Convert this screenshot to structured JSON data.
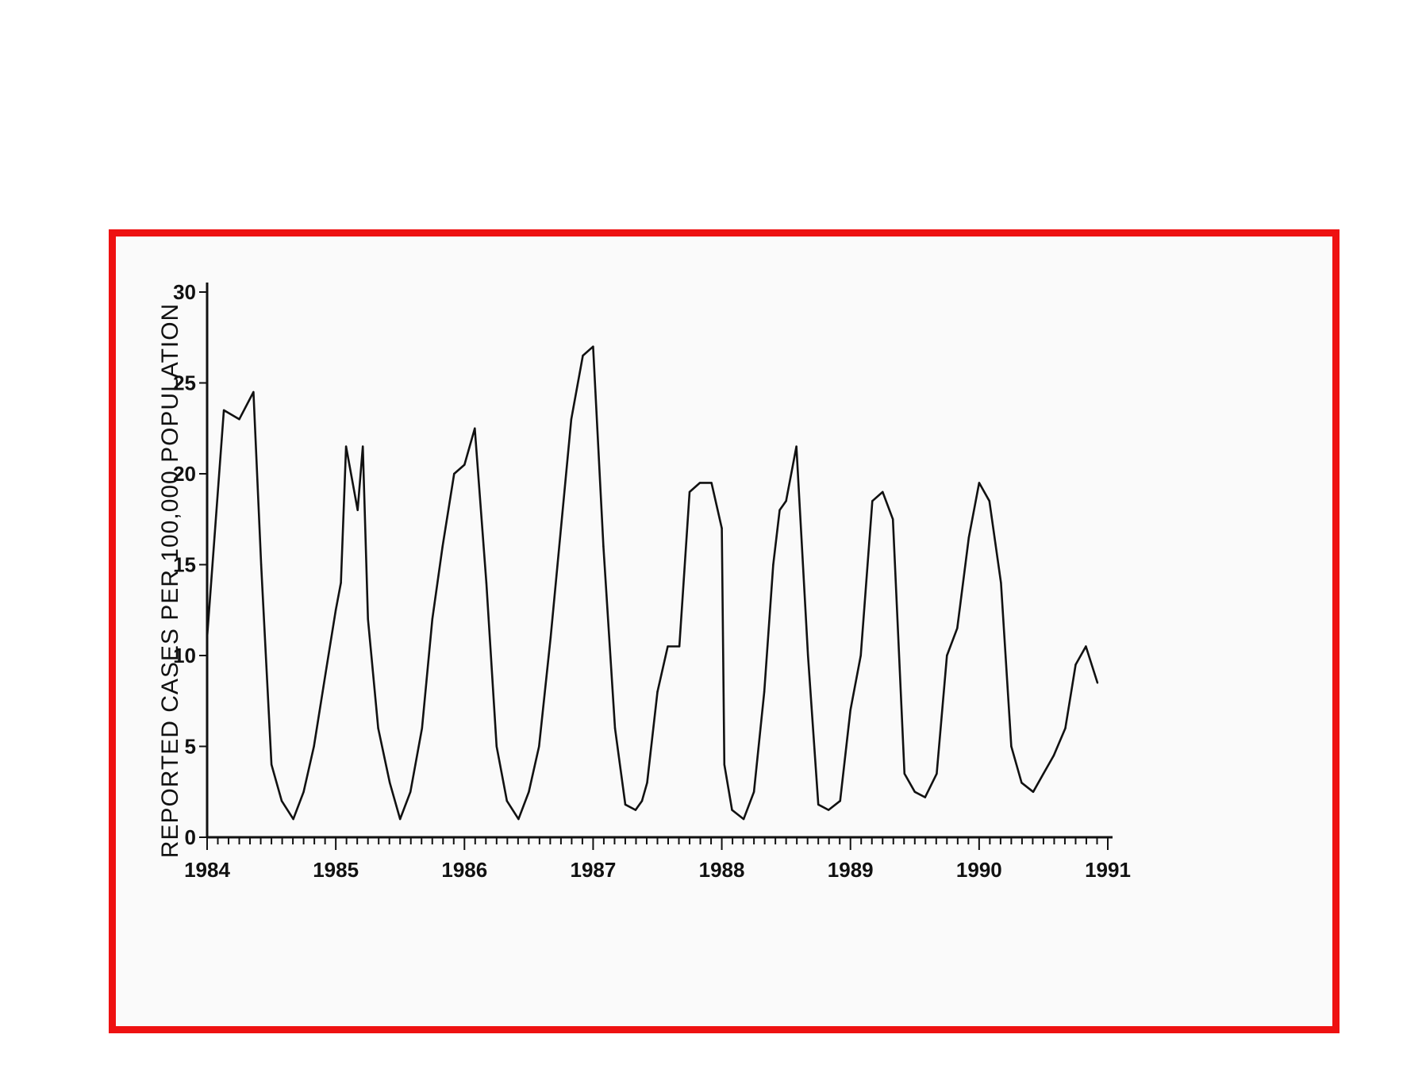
{
  "colors": {
    "frame": "#ee1111",
    "line": "#111111",
    "background": "#fafafa"
  },
  "chart_data": {
    "type": "line",
    "title": "",
    "xlabel": "",
    "ylabel": "REPORTED CASES PER 100,000 POPULATION",
    "xlim": [
      1984,
      1991
    ],
    "ylim": [
      0,
      30
    ],
    "yticks": [
      "0",
      "5",
      "10",
      "15",
      "20",
      "25",
      "30"
    ],
    "xticks": [
      "1984",
      "1985",
      "1986",
      "1987",
      "1988",
      "1989",
      "1990",
      "1991"
    ],
    "grid": false,
    "legend": "none",
    "series": [
      {
        "x": [
          1984.0,
          1984.13,
          1984.25,
          1984.36,
          1984.42,
          1984.5,
          1984.58,
          1984.67,
          1984.75,
          1984.83,
          1984.92,
          1985.0,
          1985.04,
          1985.08,
          1985.17,
          1985.21,
          1985.25,
          1985.33,
          1985.42,
          1985.5,
          1985.58,
          1985.67,
          1985.75,
          1985.83,
          1985.92,
          1986.0,
          1986.08,
          1986.17,
          1986.25,
          1986.33,
          1986.42,
          1986.5,
          1986.58,
          1986.67,
          1986.75,
          1986.83,
          1986.92,
          1987.0,
          1987.08,
          1987.17,
          1987.25,
          1987.33,
          1987.38,
          1987.42,
          1987.5,
          1987.58,
          1987.67,
          1987.75,
          1987.83,
          1987.92,
          1988.0,
          1988.02,
          1988.08,
          1988.17,
          1988.25,
          1988.33,
          1988.4,
          1988.45,
          1988.5,
          1988.58,
          1988.67,
          1988.75,
          1988.83,
          1988.92,
          1989.0,
          1989.08,
          1989.17,
          1989.25,
          1989.33,
          1989.42,
          1989.5,
          1989.58,
          1989.67,
          1989.75,
          1989.83,
          1989.92,
          1990.0,
          1990.08,
          1990.17,
          1990.25,
          1990.33,
          1990.42,
          1990.5,
          1990.58,
          1990.67,
          1990.75,
          1990.83,
          1990.92
        ],
        "y": [
          11.0,
          23.5,
          23.0,
          24.5,
          15.0,
          4.0,
          2.0,
          1.0,
          2.5,
          5.0,
          9.0,
          12.5,
          14.0,
          21.5,
          18.0,
          21.5,
          12.0,
          6.0,
          3.0,
          1.0,
          2.5,
          6.0,
          12.0,
          16.0,
          20.0,
          20.5,
          22.5,
          14.0,
          5.0,
          2.0,
          1.0,
          2.5,
          5.0,
          11.0,
          17.0,
          23.0,
          26.5,
          27.0,
          16.0,
          6.0,
          1.8,
          1.5,
          2.0,
          3.0,
          8.0,
          10.5,
          10.5,
          19.0,
          19.5,
          19.5,
          17.0,
          4.0,
          1.5,
          1.0,
          2.5,
          8.0,
          15.0,
          18.0,
          18.5,
          21.5,
          10.0,
          1.8,
          1.5,
          2.0,
          7.0,
          10.0,
          18.5,
          19.0,
          17.5,
          3.5,
          2.5,
          2.2,
          3.5,
          10.0,
          11.5,
          16.5,
          19.5,
          18.5,
          14.0,
          5.0,
          3.0,
          2.5,
          3.5,
          4.5,
          6.0,
          9.5,
          10.5,
          8.5
        ]
      }
    ]
  }
}
